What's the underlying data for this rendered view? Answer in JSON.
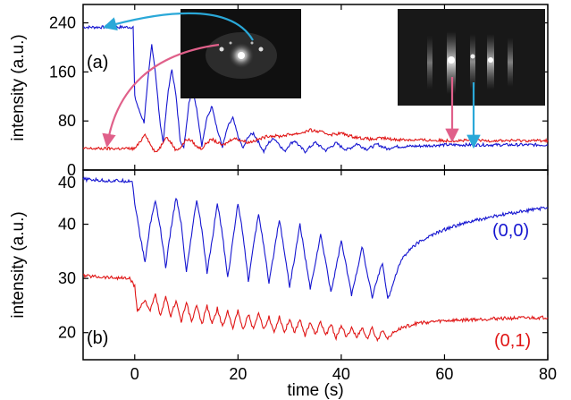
{
  "chart_data": [
    {
      "panel": "(a)",
      "type": "line",
      "title": "",
      "xlabel": "",
      "ylabel": "intensity (a.u.)",
      "xlim": [
        -10,
        80
      ],
      "ylim": [
        0,
        270
      ],
      "xticks": [
        0,
        20,
        40,
        60,
        80
      ],
      "yticks": [
        0,
        80,
        160,
        240
      ],
      "ytick_labels": [
        "0",
        "80",
        "160",
        "240"
      ],
      "extra_ytick_labels": [
        "40"
      ],
      "grid": false,
      "series": [
        {
          "color": "#1515d0",
          "points": [
            [
              -10,
              233
            ],
            [
              -0.3,
              233
            ],
            [
              0,
              120
            ],
            [
              0.8,
              98
            ],
            [
              1.8,
              78
            ],
            [
              2.6,
              150
            ],
            [
              3.3,
              205
            ],
            [
              4,
              160
            ],
            [
              4.8,
              85
            ],
            [
              5.5,
              45
            ],
            [
              6.5,
              130
            ],
            [
              7.2,
              165
            ],
            [
              8,
              120
            ],
            [
              8.8,
              50
            ],
            [
              9.5,
              35
            ],
            [
              10.5,
              110
            ],
            [
              11.2,
              135
            ],
            [
              12,
              100
            ],
            [
              13,
              40
            ],
            [
              14,
              85
            ],
            [
              15,
              105
            ],
            [
              16,
              65
            ],
            [
              17,
              38
            ],
            [
              18,
              70
            ],
            [
              19,
              85
            ],
            [
              20,
              55
            ],
            [
              21,
              35
            ],
            [
              22,
              55
            ],
            [
              23,
              60
            ],
            [
              24,
              45
            ],
            [
              25,
              30
            ],
            [
              26,
              45
            ],
            [
              27,
              52
            ],
            [
              28,
              42
            ],
            [
              29,
              30
            ],
            [
              30,
              42
            ],
            [
              31,
              48
            ],
            [
              32,
              38
            ],
            [
              33,
              30
            ],
            [
              34,
              38
            ],
            [
              35,
              45
            ],
            [
              36,
              38
            ],
            [
              37,
              32
            ],
            [
              38,
              38
            ],
            [
              39,
              44
            ],
            [
              40,
              38
            ],
            [
              41,
              33
            ],
            [
              42,
              37
            ],
            [
              43,
              43
            ],
            [
              44,
              38
            ],
            [
              45,
              34
            ],
            [
              46,
              38
            ],
            [
              47,
              42
            ],
            [
              48,
              38
            ],
            [
              49,
              34
            ],
            [
              50,
              38
            ],
            [
              55,
              39
            ],
            [
              60,
              41
            ],
            [
              65,
              41
            ],
            [
              70,
              41
            ],
            [
              75,
              41
            ],
            [
              80,
              41
            ]
          ]
        },
        {
          "color": "#e01515",
          "points": [
            [
              -10,
              35
            ],
            [
              -0.3,
              35
            ],
            [
              0,
              35
            ],
            [
              1,
              45
            ],
            [
              2,
              60
            ],
            [
              3,
              42
            ],
            [
              4,
              28
            ],
            [
              5,
              38
            ],
            [
              6,
              55
            ],
            [
              7,
              45
            ],
            [
              8,
              32
            ],
            [
              9,
              38
            ],
            [
              10,
              50
            ],
            [
              11,
              48
            ],
            [
              12,
              38
            ],
            [
              13,
              35
            ],
            [
              14,
              45
            ],
            [
              15,
              50
            ],
            [
              16,
              45
            ],
            [
              17,
              40
            ],
            [
              18,
              45
            ],
            [
              19,
              52
            ],
            [
              20,
              50
            ],
            [
              22,
              45
            ],
            [
              24,
              50
            ],
            [
              26,
              56
            ],
            [
              28,
              55
            ],
            [
              30,
              58
            ],
            [
              32,
              60
            ],
            [
              34,
              65
            ],
            [
              36,
              62
            ],
            [
              38,
              58
            ],
            [
              40,
              60
            ],
            [
              42,
              55
            ],
            [
              44,
              52
            ],
            [
              46,
              50
            ],
            [
              48,
              52
            ],
            [
              50,
              50
            ],
            [
              55,
              49
            ],
            [
              60,
              48
            ],
            [
              65,
              48
            ],
            [
              70,
              48
            ],
            [
              75,
              48
            ],
            [
              80,
              48
            ]
          ]
        }
      ]
    },
    {
      "panel": "(b)",
      "type": "line",
      "title": "",
      "xlabel": "time (s)",
      "ylabel": "intensity (a.u.)",
      "xlim": [
        -10,
        80
      ],
      "ylim": [
        15,
        50
      ],
      "xticks": [
        0,
        20,
        40,
        60,
        80
      ],
      "yticks": [
        20,
        30,
        40
      ],
      "grid": false,
      "series": [
        {
          "name": "(0,0)",
          "color": "#1515d0",
          "points": [
            [
              -10,
              48.3
            ],
            [
              -5,
              48
            ],
            [
              -0.5,
              48
            ],
            [
              0,
              44
            ],
            [
              1,
              38
            ],
            [
              2,
              33
            ],
            [
              3,
              40
            ],
            [
              4,
              44.5
            ],
            [
              5,
              39
            ],
            [
              6,
              32
            ],
            [
              7,
              39
            ],
            [
              8,
              45
            ],
            [
              9,
              40
            ],
            [
              10,
              31
            ],
            [
              11,
              38
            ],
            [
              12,
              44.5
            ],
            [
              13,
              39
            ],
            [
              14,
              31
            ],
            [
              15,
              37
            ],
            [
              16,
              44
            ],
            [
              17,
              38
            ],
            [
              18,
              30
            ],
            [
              19,
              37
            ],
            [
              20,
              44
            ],
            [
              21,
              38
            ],
            [
              22,
              29.5
            ],
            [
              23,
              36
            ],
            [
              24,
              42
            ],
            [
              25,
              36
            ],
            [
              26,
              29
            ],
            [
              27,
              35
            ],
            [
              28,
              41
            ],
            [
              29,
              35
            ],
            [
              30,
              28.5
            ],
            [
              31,
              34
            ],
            [
              32,
              40
            ],
            [
              33,
              34
            ],
            [
              34,
              28
            ],
            [
              35,
              33
            ],
            [
              36,
              38
            ],
            [
              37,
              33
            ],
            [
              38,
              27.5
            ],
            [
              39,
              32
            ],
            [
              40,
              37
            ],
            [
              41,
              32
            ],
            [
              42,
              27
            ],
            [
              43,
              31
            ],
            [
              44,
              36
            ],
            [
              45,
              31
            ],
            [
              46,
              26.5
            ],
            [
              47,
              30
            ],
            [
              48,
              33
            ],
            [
              49,
              26
            ],
            [
              50,
              29
            ],
            [
              51,
              32
            ],
            [
              52,
              34
            ],
            [
              54,
              36
            ],
            [
              56,
              37.2
            ],
            [
              58,
              38.2
            ],
            [
              60,
              39
            ],
            [
              62,
              39.7
            ],
            [
              64,
              40.2
            ],
            [
              66,
              40.7
            ],
            [
              68,
              41.1
            ],
            [
              70,
              41.5
            ],
            [
              72,
              41.9
            ],
            [
              74,
              42.2
            ],
            [
              76,
              42.5
            ],
            [
              78,
              42.8
            ],
            [
              80,
              43
            ]
          ]
        },
        {
          "name": "(0,1)",
          "color": "#e01515",
          "points": [
            [
              -10,
              30.5
            ],
            [
              -5,
              30.2
            ],
            [
              -1,
              30
            ],
            [
              0,
              28.5
            ],
            [
              0.5,
              24
            ],
            [
              2,
              26
            ],
            [
              3,
              24
            ],
            [
              4,
              27
            ],
            [
              5,
              23
            ],
            [
              6,
              26.5
            ],
            [
              7,
              23
            ],
            [
              8,
              26
            ],
            [
              9,
              22
            ],
            [
              10,
              25.5
            ],
            [
              11,
              22
            ],
            [
              12,
              25
            ],
            [
              13,
              21.5
            ],
            [
              14,
              25
            ],
            [
              15,
              21.5
            ],
            [
              16,
              24.5
            ],
            [
              17,
              21
            ],
            [
              18,
              24
            ],
            [
              19,
              21
            ],
            [
              20,
              24
            ],
            [
              21,
              20.5
            ],
            [
              22,
              23.5
            ],
            [
              23,
              20.5
            ],
            [
              24,
              23.5
            ],
            [
              25,
              20.5
            ],
            [
              26,
              23
            ],
            [
              27,
              20
            ],
            [
              28,
              23
            ],
            [
              29,
              20
            ],
            [
              30,
              22.5
            ],
            [
              31,
              20
            ],
            [
              32,
              22.5
            ],
            [
              33,
              19.5
            ],
            [
              34,
              22
            ],
            [
              35,
              19.5
            ],
            [
              36,
              22
            ],
            [
              37,
              19.5
            ],
            [
              38,
              21.5
            ],
            [
              39,
              19
            ],
            [
              40,
              21.5
            ],
            [
              41,
              19
            ],
            [
              42,
              21
            ],
            [
              43,
              19
            ],
            [
              44,
              21
            ],
            [
              45,
              18.8
            ],
            [
              46,
              20.8
            ],
            [
              47,
              18.5
            ],
            [
              48,
              20.5
            ],
            [
              49,
              19
            ],
            [
              50,
              20
            ],
            [
              52,
              21
            ],
            [
              55,
              21.8
            ],
            [
              60,
              22.2
            ],
            [
              65,
              22.4
            ],
            [
              70,
              22.6
            ],
            [
              75,
              22.7
            ],
            [
              80,
              22.8
            ]
          ]
        }
      ]
    }
  ]
}
